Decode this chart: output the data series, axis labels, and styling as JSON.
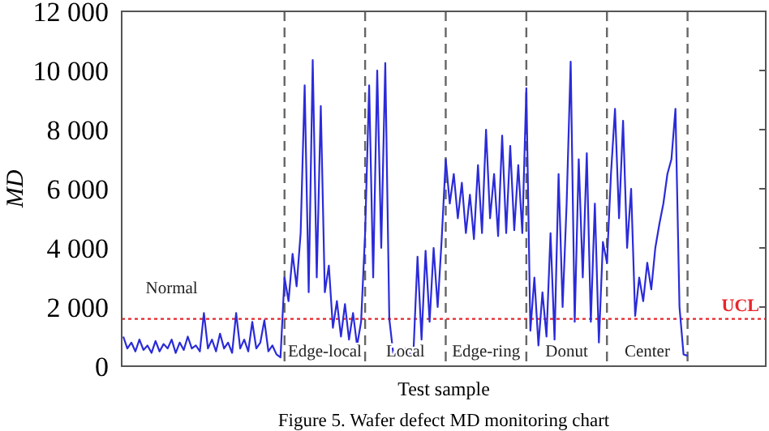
{
  "chart_data": {
    "type": "line",
    "title": "Figure 5. Wafer defect MD monitoring chart",
    "xlabel": "Test sample",
    "ylabel": "MD",
    "categories": [
      null,
      null,
      null,
      null,
      null,
      null,
      null,
      null,
      null,
      null,
      null,
      null,
      null,
      null,
      null,
      null,
      null,
      null,
      null,
      null,
      null,
      null,
      null,
      null,
      null,
      null,
      null,
      null,
      null,
      null,
      null,
      null,
      null,
      null,
      null,
      null,
      null,
      null,
      null,
      null,
      null,
      null,
      null,
      null,
      null,
      null,
      null,
      null,
      null,
      null,
      null,
      null,
      null,
      null,
      null,
      null,
      null,
      null,
      null,
      null,
      null,
      null,
      null,
      null,
      null,
      null,
      null,
      null,
      null,
      null,
      null,
      null,
      null,
      null,
      null,
      null,
      null,
      null,
      null,
      null,
      null,
      null,
      null,
      null,
      null,
      null,
      null,
      null,
      null,
      null,
      null,
      null,
      null,
      null,
      null,
      null,
      null,
      null,
      null,
      null,
      null,
      null,
      null,
      null,
      null,
      null,
      null,
      null,
      null,
      null,
      null,
      null,
      null,
      null,
      null,
      null,
      null,
      null,
      null,
      null,
      null,
      null,
      null,
      null,
      null,
      null,
      null,
      null,
      null,
      null,
      null,
      null,
      null,
      null,
      null,
      null,
      null,
      null,
      null,
      null,
      null,
      null,
      null,
      null,
      null,
      null,
      null,
      null,
      null,
      null,
      null,
      null,
      null,
      null,
      null,
      null,
      null,
      null,
      null,
      null
    ],
    "ylim": [
      0,
      12000
    ],
    "yticks": [
      {
        "value": 0,
        "label": "0"
      },
      {
        "value": 2000,
        "label": "2 000"
      },
      {
        "value": 4000,
        "label": "4 000"
      },
      {
        "value": 6000,
        "label": "6 000"
      },
      {
        "value": 8000,
        "label": "8 000"
      },
      {
        "value": 10000,
        "label": "10 000"
      },
      {
        "value": 12000,
        "label": "12 000"
      }
    ],
    "tick_labels": "y",
    "marker": "none",
    "line_style": "solid",
    "series": [
      {
        "color": "#2b2bd9",
        "values": [
          1000,
          600,
          800,
          500,
          900,
          550,
          700,
          450,
          850,
          500,
          750,
          600,
          900,
          450,
          800,
          550,
          1000,
          600,
          700,
          500,
          1800,
          600,
          900,
          500,
          1100,
          600,
          800,
          450,
          1800,
          600,
          900,
          500,
          1500,
          600,
          800,
          1550,
          500,
          700,
          400,
          300,
          3000,
          2200,
          3800,
          2700,
          4500,
          9500,
          2500,
          10350,
          3000,
          8800,
          2500,
          3400,
          1300,
          2200,
          1000,
          2100,
          900,
          1800,
          700,
          1500,
          4500,
          9500,
          3000,
          10000,
          4000,
          10250,
          1600,
          400,
          500,
          350,
          600,
          400,
          500,
          3700,
          900,
          3900,
          1500,
          4000,
          2000,
          4300,
          7000,
          5500,
          6500,
          5000,
          6200,
          4500,
          5800,
          4300,
          6800,
          4500,
          8000,
          5000,
          6500,
          4400,
          7800,
          4500,
          7450,
          4600,
          6800,
          4500,
          9400,
          1200,
          3000,
          700,
          2500,
          1000,
          4500,
          900,
          6500,
          2000,
          5500,
          10300,
          1500,
          7000,
          3000,
          7200,
          1500,
          5500,
          800,
          4200,
          3500,
          6500,
          8700,
          5000,
          8300,
          4000,
          6000,
          1700,
          3000,
          2200,
          3500,
          2600,
          4000,
          4800,
          5500,
          6500,
          7000,
          8700,
          2000,
          400,
          350,
          null,
          null,
          null,
          null,
          null,
          null,
          null,
          null,
          null,
          null,
          null,
          null,
          null,
          null,
          null,
          null,
          null,
          null,
          null
        ]
      }
    ],
    "ref_lines": [
      {
        "axis": "y",
        "value": 1600,
        "label": "UCL",
        "color": "#e8262b",
        "line_style": "dotted"
      }
    ],
    "annotations": [
      "Normal",
      "Edge-local",
      "Local",
      "Edge-ring",
      "Donut",
      "Center"
    ]
  }
}
